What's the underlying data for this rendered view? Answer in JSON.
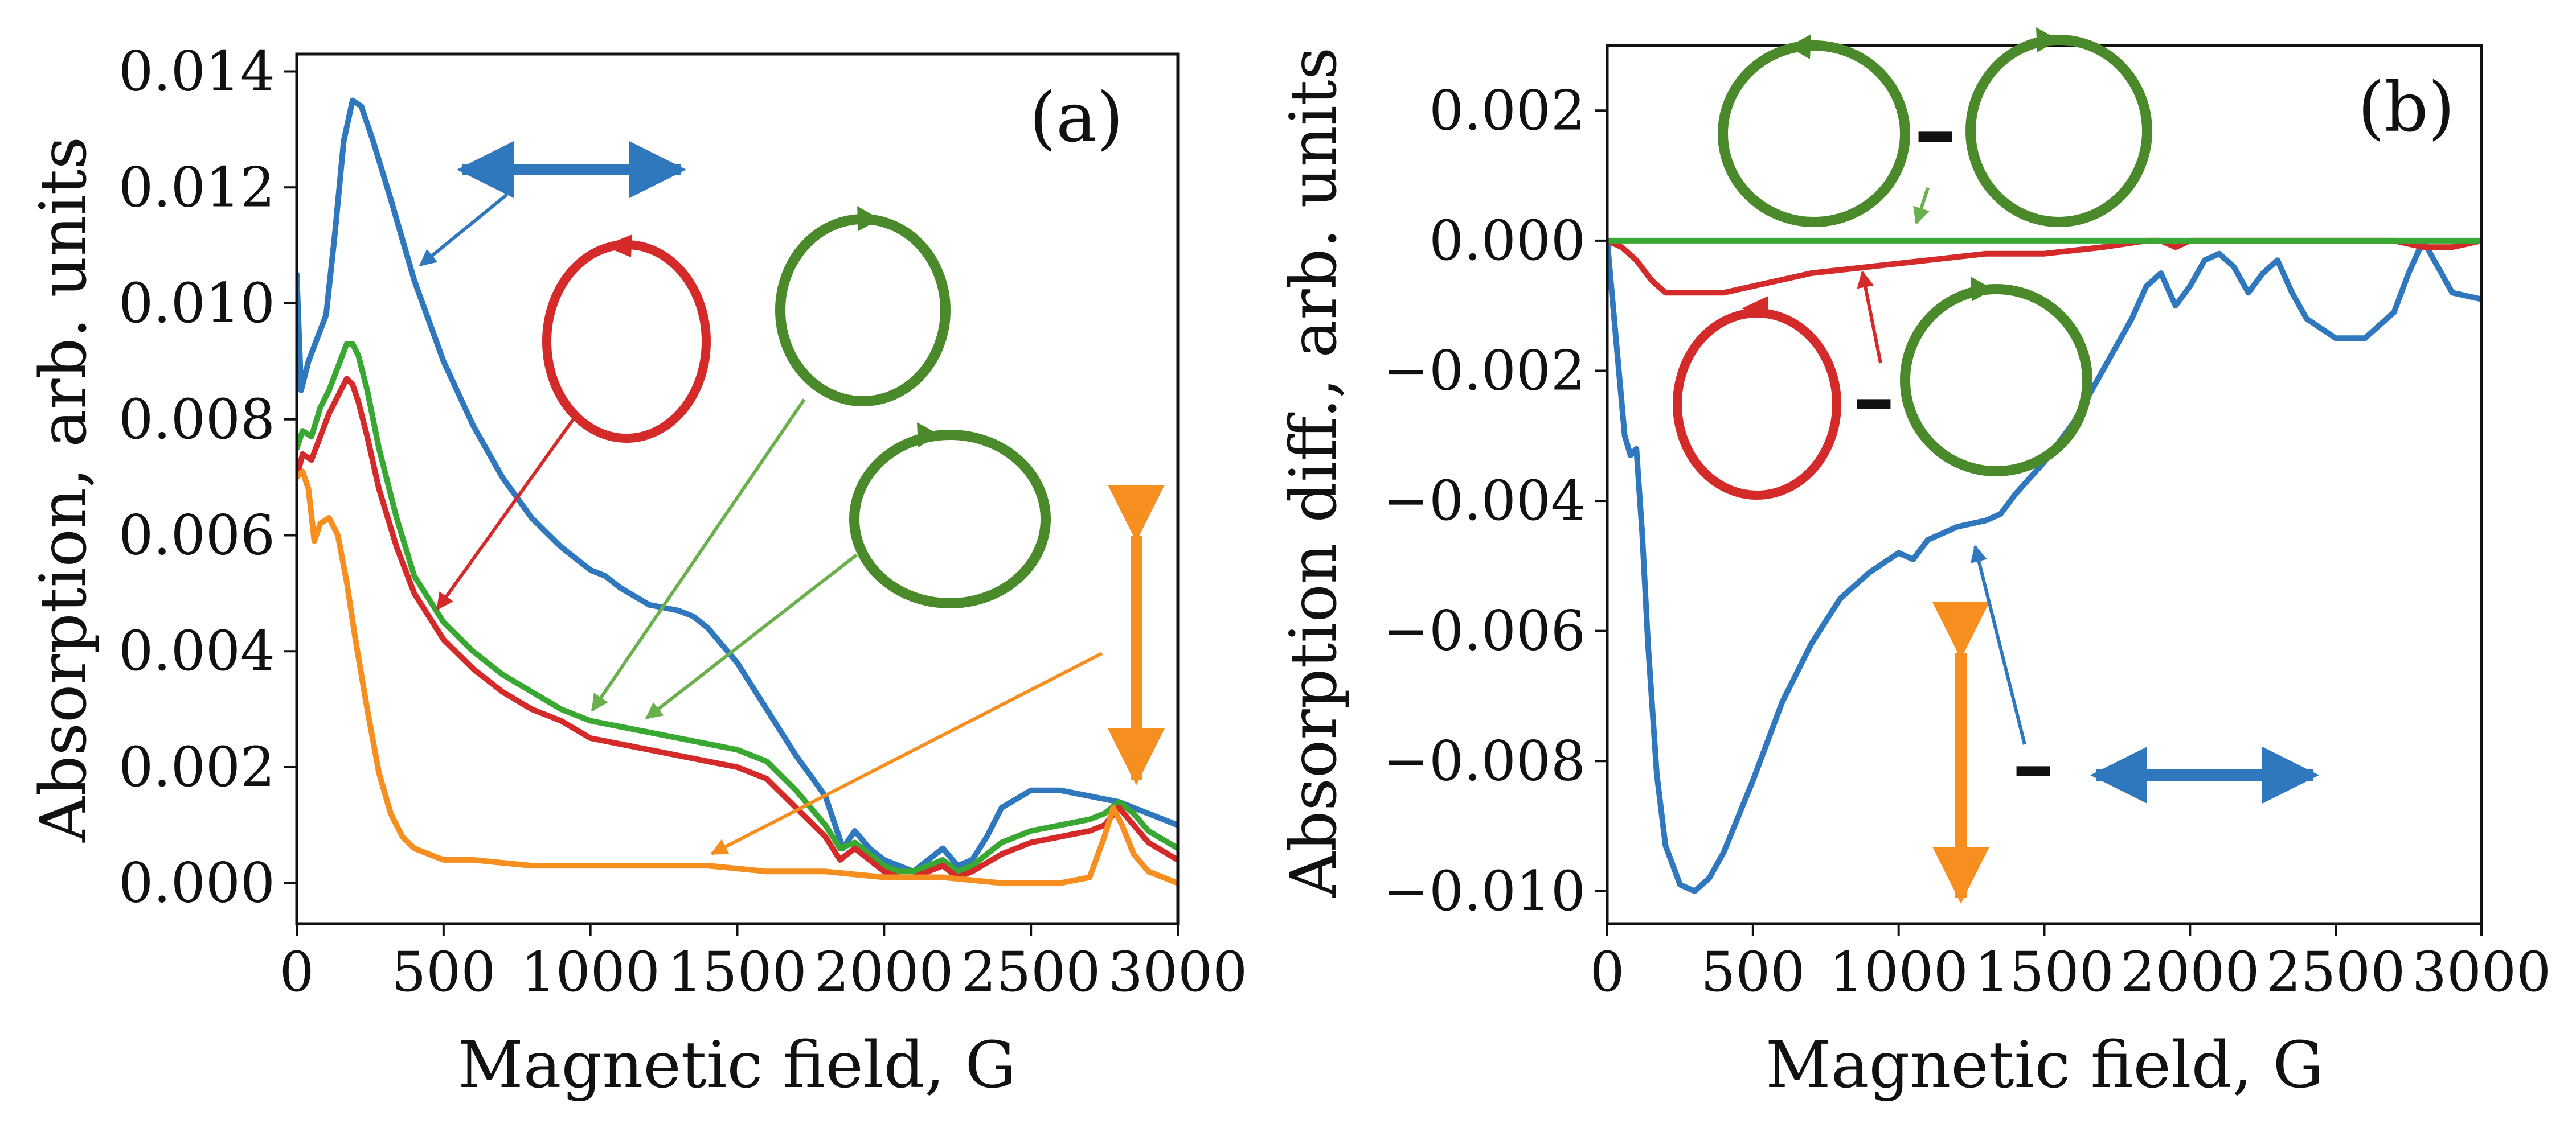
{
  "chart_data": [
    {
      "type": "line",
      "panel_label": "(a)",
      "xlabel": "Magnetic field, G",
      "ylabel": "Absorption, arb. units",
      "xlim": [
        0,
        3000
      ],
      "ylim": [
        -0.0007,
        0.0143
      ],
      "xticks": [
        0,
        500,
        1000,
        1500,
        2000,
        2500,
        3000
      ],
      "xtick_labels": [
        "0",
        "500",
        "1000",
        "1500",
        "2000",
        "2500",
        "3000"
      ],
      "yticks": [
        0,
        0.002,
        0.004,
        0.006,
        0.008,
        0.01,
        0.012,
        0.014
      ],
      "ytick_labels": [
        "0.000",
        "0.002",
        "0.004",
        "0.006",
        "0.008",
        "0.010",
        "0.012",
        "0.014"
      ],
      "colors": {
        "blue": "#2f78bd",
        "green": "#38a832",
        "red": "#d42a2a",
        "orange": "#f78e20",
        "dark_green": "#4a8a2a"
      },
      "series": [
        {
          "name": "linear horizontal polarization",
          "color": "#2f78bd",
          "x": [
            0,
            15,
            40,
            70,
            100,
            130,
            160,
            190,
            220,
            260,
            320,
            400,
            500,
            600,
            700,
            800,
            900,
            1000,
            1050,
            1100,
            1200,
            1300,
            1350,
            1400,
            1500,
            1600,
            1700,
            1800,
            1860,
            1900,
            1950,
            2000,
            2050,
            2100,
            2150,
            2200,
            2250,
            2300,
            2350,
            2400,
            2500,
            2600,
            2700,
            2800,
            2900,
            3000
          ],
          "y": [
            0.0105,
            0.0085,
            0.009,
            0.0094,
            0.0098,
            0.0112,
            0.0128,
            0.0135,
            0.0134,
            0.0128,
            0.0118,
            0.0104,
            0.009,
            0.0079,
            0.007,
            0.0063,
            0.0058,
            0.0054,
            0.0053,
            0.0051,
            0.0048,
            0.0047,
            0.0046,
            0.0044,
            0.0038,
            0.003,
            0.0022,
            0.0015,
            0.0006,
            0.0009,
            0.0006,
            0.0004,
            0.0003,
            0.0002,
            0.0004,
            0.0006,
            0.0003,
            0.0004,
            0.0008,
            0.0013,
            0.0016,
            0.0016,
            0.0015,
            0.0014,
            0.0012,
            0.001
          ]
        },
        {
          "name": "circular polarization (green)",
          "color": "#38a832",
          "x": [
            0,
            20,
            50,
            80,
            110,
            140,
            170,
            190,
            210,
            240,
            280,
            340,
            400,
            500,
            600,
            700,
            800,
            900,
            1000,
            1100,
            1200,
            1300,
            1400,
            1500,
            1600,
            1700,
            1800,
            1850,
            1900,
            1950,
            2000,
            2050,
            2100,
            2150,
            2200,
            2250,
            2300,
            2400,
            2500,
            2600,
            2700,
            2750,
            2800,
            2850,
            2900,
            3000
          ],
          "y": [
            0.0075,
            0.0078,
            0.0077,
            0.0082,
            0.0085,
            0.0089,
            0.0093,
            0.0093,
            0.0091,
            0.0085,
            0.0075,
            0.0063,
            0.0053,
            0.0045,
            0.004,
            0.0036,
            0.0033,
            0.003,
            0.0028,
            0.0027,
            0.0026,
            0.0025,
            0.0024,
            0.0023,
            0.0021,
            0.0016,
            0.001,
            0.0006,
            0.0007,
            0.0005,
            0.0003,
            0.0002,
            0.0002,
            0.0003,
            0.0004,
            0.0002,
            0.0003,
            0.0007,
            0.0009,
            0.001,
            0.0011,
            0.0012,
            0.0014,
            0.0012,
            0.0009,
            0.0006
          ]
        },
        {
          "name": "circular polarization (red)",
          "color": "#d42a2a",
          "x": [
            0,
            20,
            50,
            80,
            110,
            140,
            170,
            190,
            210,
            240,
            280,
            340,
            400,
            500,
            600,
            700,
            800,
            900,
            1000,
            1100,
            1200,
            1300,
            1400,
            1500,
            1600,
            1700,
            1800,
            1850,
            1900,
            1950,
            2000,
            2050,
            2100,
            2150,
            2200,
            2250,
            2300,
            2400,
            2500,
            2600,
            2700,
            2750,
            2800,
            2850,
            2900,
            3000
          ],
          "y": [
            0.007,
            0.0074,
            0.0073,
            0.0077,
            0.0081,
            0.0084,
            0.0087,
            0.0086,
            0.0083,
            0.0077,
            0.0068,
            0.0058,
            0.005,
            0.0042,
            0.0037,
            0.0033,
            0.003,
            0.0028,
            0.0025,
            0.0024,
            0.0023,
            0.0022,
            0.0021,
            0.002,
            0.0018,
            0.0013,
            0.0008,
            0.0004,
            0.0006,
            0.0004,
            0.0002,
            0.0001,
            0.0001,
            0.0002,
            0.0003,
            0.0001,
            0.0002,
            0.0005,
            0.0007,
            0.0008,
            0.0009,
            0.001,
            0.0013,
            0.001,
            0.0007,
            0.0004
          ]
        },
        {
          "name": "linear vertical polarization",
          "color": "#f78e20",
          "x": [
            0,
            20,
            40,
            60,
            80,
            110,
            140,
            170,
            200,
            240,
            280,
            320,
            360,
            400,
            450,
            500,
            600,
            800,
            1000,
            1200,
            1400,
            1600,
            1800,
            2000,
            2200,
            2400,
            2600,
            2700,
            2750,
            2780,
            2810,
            2850,
            2900,
            3000
          ],
          "y": [
            0.007,
            0.0071,
            0.0068,
            0.0059,
            0.0062,
            0.0063,
            0.006,
            0.0052,
            0.0042,
            0.003,
            0.0019,
            0.0012,
            0.0008,
            0.0006,
            0.0005,
            0.0004,
            0.0004,
            0.0003,
            0.0003,
            0.0003,
            0.0003,
            0.0002,
            0.0002,
            0.0001,
            0.0001,
            0.0,
            0.0,
            0.0001,
            0.0008,
            0.0013,
            0.001,
            0.0005,
            0.0002,
            0.0
          ]
        }
      ]
    },
    {
      "type": "line",
      "panel_label": "(b)",
      "xlabel": "Magnetic field, G",
      "ylabel": "Absorption diff., arb. units",
      "xlim": [
        0,
        3000
      ],
      "ylim": [
        -0.0105,
        0.003
      ],
      "xticks": [
        0,
        500,
        1000,
        1500,
        2000,
        2500,
        3000
      ],
      "xtick_labels": [
        "0",
        "500",
        "1000",
        "1500",
        "2000",
        "2500",
        "3000"
      ],
      "yticks": [
        0.002,
        0,
        -0.002,
        -0.004,
        -0.006,
        -0.008,
        -0.01
      ],
      "ytick_labels": [
        "0.002",
        "0.000",
        "−0.002",
        "−0.004",
        "−0.006",
        "−0.008",
        "−0.010"
      ],
      "series": [
        {
          "name": "horizontal minus vertical (blue)",
          "color": "#2f78bd",
          "x": [
            0,
            30,
            60,
            80,
            100,
            120,
            140,
            170,
            200,
            250,
            300,
            350,
            400,
            500,
            600,
            700,
            800,
            900,
            1000,
            1050,
            1100,
            1200,
            1300,
            1350,
            1400,
            1500,
            1600,
            1700,
            1800,
            1850,
            1900,
            1950,
            2000,
            2050,
            2100,
            2150,
            2200,
            2250,
            2300,
            2350,
            2400,
            2500,
            2600,
            2700,
            2750,
            2800,
            2850,
            2900,
            3000
          ],
          "y": [
            0.0,
            -0.0015,
            -0.003,
            -0.0033,
            -0.0032,
            -0.0045,
            -0.0062,
            -0.0082,
            -0.0093,
            -0.0099,
            -0.01,
            -0.0098,
            -0.0094,
            -0.0083,
            -0.0071,
            -0.0062,
            -0.0055,
            -0.0051,
            -0.0048,
            -0.0049,
            -0.0046,
            -0.0044,
            -0.0043,
            -0.0042,
            -0.0039,
            -0.0034,
            -0.0028,
            -0.002,
            -0.0012,
            -0.0007,
            -0.0005,
            -0.001,
            -0.0007,
            -0.0003,
            -0.0002,
            -0.0004,
            -0.0008,
            -0.0005,
            -0.0003,
            -0.0008,
            -0.0012,
            -0.0015,
            -0.0015,
            -0.0011,
            -0.0005,
            0.0,
            -0.0004,
            -0.0008,
            -0.0009
          ]
        },
        {
          "name": "circular difference (red)",
          "color": "#d42a2a",
          "x": [
            0,
            50,
            100,
            150,
            200,
            300,
            400,
            500,
            700,
            900,
            1100,
            1300,
            1500,
            1700,
            1850,
            1900,
            1950,
            2000,
            2300,
            2500,
            2700,
            2800,
            2900,
            3000
          ],
          "y": [
            0.0,
            -0.0001,
            -0.0003,
            -0.0006,
            -0.0008,
            -0.0008,
            -0.0008,
            -0.0007,
            -0.0005,
            -0.0004,
            -0.0003,
            -0.0002,
            -0.0002,
            -0.0001,
            0.0,
            0.0,
            -0.0001,
            0.0,
            0.0,
            0.0,
            0.0,
            -0.0001,
            -0.0001,
            0.0
          ]
        },
        {
          "name": "circular difference (green)",
          "color": "#38a832",
          "x": [
            0,
            3000
          ],
          "y": [
            0.0,
            0.0
          ]
        }
      ]
    }
  ],
  "annotations": {
    "minus_sign": "–"
  }
}
